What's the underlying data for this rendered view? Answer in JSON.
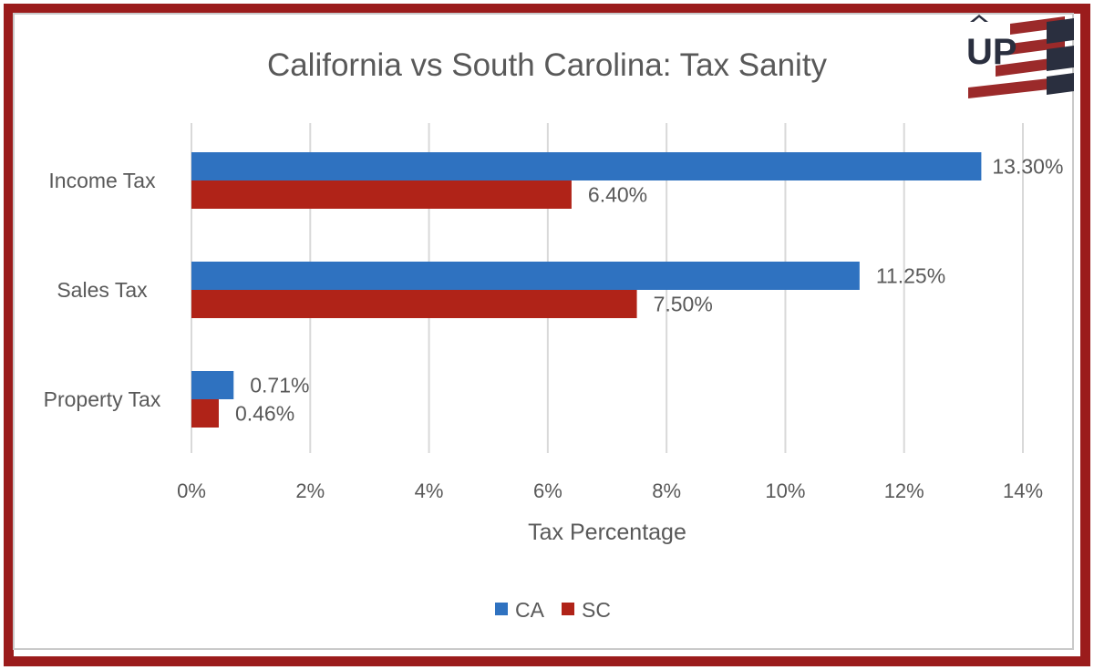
{
  "chart_data": {
    "type": "bar",
    "orientation": "horizontal",
    "title": "California vs South Carolina: Tax Sanity",
    "xlabel": "Tax Percentage",
    "ylabel": "",
    "categories": [
      "Income Tax",
      "Sales Tax",
      "Property Tax"
    ],
    "series": [
      {
        "name": "CA",
        "values": [
          13.3,
          11.25,
          0.71
        ],
        "labels": [
          "13.30%",
          "11.25%",
          "0.71%"
        ],
        "color": "#2f72c0"
      },
      {
        "name": "SC",
        "values": [
          6.4,
          7.5,
          0.46
        ],
        "labels": [
          "6.40%",
          "7.50%",
          "0.46%"
        ],
        "color": "#b02318"
      }
    ],
    "xlim": [
      0,
      14
    ],
    "xticks": [
      0,
      2,
      4,
      6,
      8,
      10,
      12,
      14
    ],
    "xtick_labels": [
      "0%",
      "2%",
      "4%",
      "6%",
      "8%",
      "10%",
      "12%",
      "14%"
    ],
    "grid": true,
    "legend_position": "bottom"
  },
  "logo": {
    "text": "UP",
    "icon": "up-flag-logo"
  },
  "colors": {
    "frame": "#9b1c1c",
    "grid": "#d9d9d9",
    "text": "#595959"
  }
}
